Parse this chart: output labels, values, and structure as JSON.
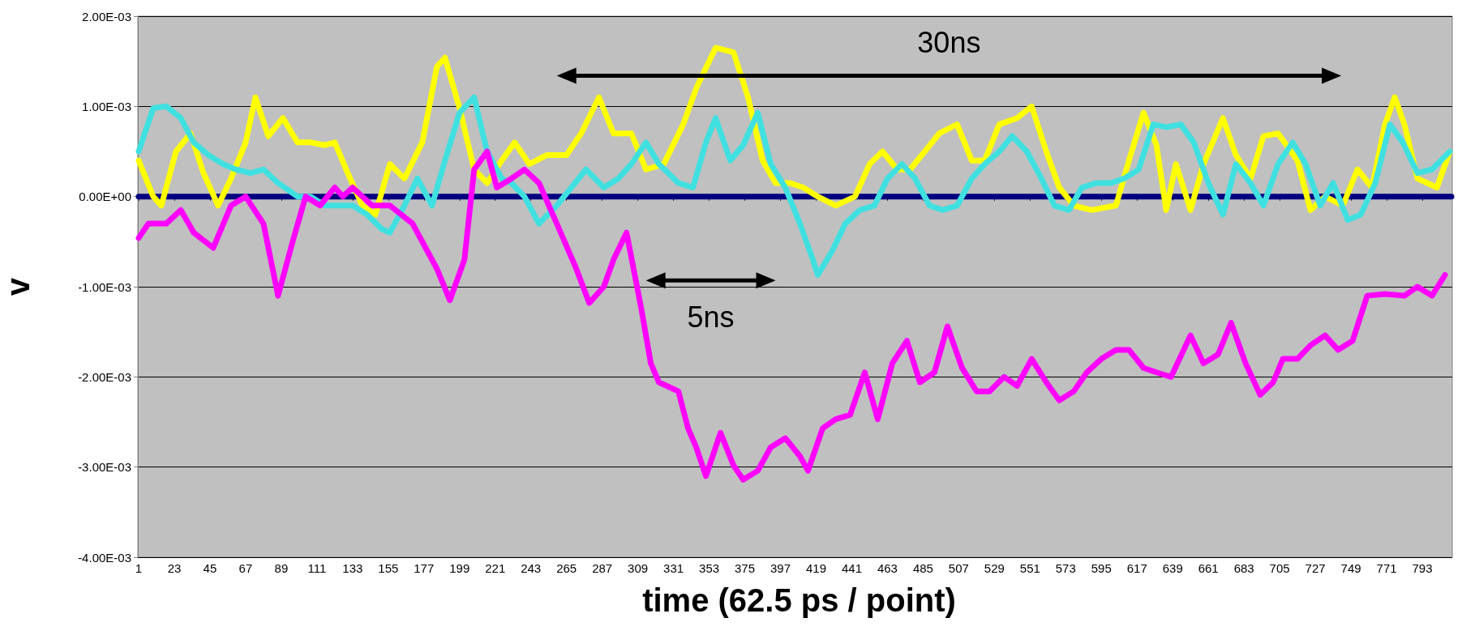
{
  "chart_data": {
    "type": "line",
    "ylabel": "v",
    "xlabel": "time (62.5 ps / point)",
    "xlim": [
      0.5,
      811.5
    ],
    "xticks": [
      1,
      23,
      45,
      67,
      89,
      111,
      133,
      155,
      177,
      199,
      221,
      243,
      265,
      287,
      309,
      331,
      353,
      375,
      397,
      419,
      441,
      463,
      485,
      507,
      529,
      551,
      573,
      595,
      617,
      639,
      661,
      683,
      705,
      727,
      749,
      771,
      793
    ],
    "ylim": [
      -0.004,
      0.002
    ],
    "yticks": [
      {
        "value": -0.004,
        "label": "-4.00E-03"
      },
      {
        "value": -0.003,
        "label": "-3.00E-03"
      },
      {
        "value": -0.002,
        "label": "-2.00E-03"
      },
      {
        "value": -0.001,
        "label": "-1.00E-03"
      },
      {
        "value": 0,
        "label": "0.00E+00"
      },
      {
        "value": 0.001,
        "label": "1.00E-03"
      },
      {
        "value": 0.002,
        "label": "2.00E-03"
      }
    ],
    "grid": "y",
    "marker": "none",
    "line_style": "solid",
    "annotations": [
      "30ns",
      "5ns"
    ],
    "series": [
      {
        "color": "#000080",
        "x": [
          1,
          811
        ],
        "values": [
          0,
          0
        ]
      },
      {
        "color": "#ffff00",
        "x": [
          1,
          10,
          15,
          24,
          33,
          41,
          50,
          58,
          67,
          73,
          81,
          90,
          99,
          107,
          116,
          122,
          130,
          139,
          147,
          156,
          165,
          176,
          185,
          190,
          199,
          208,
          216,
          225,
          233,
          242,
          253,
          265,
          274,
          285,
          294,
          305,
          314,
          325,
          337,
          345,
          357,
          368,
          377,
          386,
          394,
          403,
          411,
          420,
          431,
          443,
          452,
          460,
          469,
          477,
          486,
          495,
          506,
          515,
          523,
          532,
          543,
          552,
          561,
          569,
          578,
          589,
          604,
          612,
          621,
          629,
          635,
          641,
          650,
          658,
          670,
          678,
          687,
          695,
          704,
          716,
          724,
          733,
          744,
          753,
          762,
          770,
          776,
          782,
          790,
          802,
          810
        ],
        "values": [
          0.0004,
          0,
          -0.0001,
          0.0005,
          0.0007,
          0.00026,
          -0.0001,
          0.0002,
          0.0006,
          0.0011,
          0.00067,
          0.00087,
          0.0006,
          0.0006,
          0.00057,
          0.0006,
          0.00026,
          -0.0001,
          -0.0002,
          0.00036,
          0.0002,
          0.0006,
          0.00144,
          0.00154,
          0.00098,
          0.0003,
          0.00015,
          0.0004,
          0.0006,
          0.00036,
          0.00046,
          0.00046,
          0.0007,
          0.0011,
          0.0007,
          0.0007,
          0.0003,
          0.00036,
          0.0008,
          0.0012,
          0.00165,
          0.0016,
          0.0011,
          0.0004,
          0.00015,
          0.00015,
          0.0001,
          0,
          -0.0001,
          0,
          0.00036,
          0.0005,
          0.0003,
          0.0003,
          0.0005,
          0.0007,
          0.0008,
          0.0004,
          0.0004,
          0.0008,
          0.00087,
          0.001,
          0.0005,
          0.0001,
          -0.0001,
          -0.00015,
          -0.0001,
          0.0004,
          0.00093,
          0.00057,
          -0.00015,
          0.00036,
          -0.00015,
          0.00036,
          0.00087,
          0.00046,
          0.0002,
          0.00067,
          0.0007,
          0.0004,
          -0.00015,
          0,
          -0.0001,
          0.0003,
          0.0001,
          0.0008,
          0.0011,
          0.0008,
          0.0002,
          0.0001,
          0.0005
        ]
      },
      {
        "color": "#40e0e0",
        "x": [
          1,
          10,
          18,
          27,
          35,
          44,
          53,
          61,
          70,
          78,
          87,
          99,
          107,
          116,
          125,
          133,
          142,
          151,
          156,
          165,
          173,
          182,
          190,
          199,
          208,
          216,
          225,
          231,
          239,
          248,
          259,
          268,
          277,
          288,
          297,
          305,
          314,
          322,
          334,
          343,
          351,
          357,
          366,
          374,
          383,
          391,
          400,
          409,
          417,
          420,
          429,
          437,
          446,
          455,
          463,
          472,
          480,
          489,
          497,
          506,
          515,
          523,
          532,
          540,
          549,
          558,
          566,
          575,
          583,
          592,
          601,
          609,
          618,
          627,
          635,
          644,
          652,
          661,
          670,
          678,
          687,
          695,
          704,
          713,
          721,
          730,
          738,
          747,
          755,
          764,
          773,
          781,
          790,
          799,
          810
        ],
        "values": [
          0.0005,
          0.00098,
          0.001,
          0.00087,
          0.0006,
          0.00046,
          0.00036,
          0.0003,
          0.00026,
          0.0003,
          0.00015,
          0,
          0,
          -0.0001,
          -0.0001,
          -0.0001,
          -0.0002,
          -0.00036,
          -0.0004,
          -0.0001,
          0.0002,
          -0.0001,
          0.0004,
          0.00093,
          0.0011,
          0.0005,
          0.0002,
          0.00015,
          0,
          -0.0003,
          -0.0001,
          0.0001,
          0.0003,
          0.0001,
          0.0002,
          0.00036,
          0.0006,
          0.00036,
          0.00015,
          0.0001,
          0.0006,
          0.00087,
          0.0004,
          0.00057,
          0.00093,
          0.00036,
          0.0001,
          -0.0003,
          -0.0007,
          -0.00087,
          -0.0006,
          -0.0003,
          -0.00015,
          -0.0001,
          0.0002,
          0.00036,
          0.0002,
          -0.0001,
          -0.00015,
          -0.0001,
          0.0002,
          0.00036,
          0.0005,
          0.00067,
          0.0005,
          0.0002,
          -0.0001,
          -0.00015,
          0.0001,
          0.00015,
          0.00015,
          0.0002,
          0.0003,
          0.0008,
          0.00077,
          0.0008,
          0.0006,
          0.00015,
          -0.0002,
          0.00036,
          0.00015,
          -0.0001,
          0.00036,
          0.0006,
          0.00036,
          -0.0001,
          0.00015,
          -0.00026,
          -0.0002,
          0.00015,
          0.0008,
          0.0006,
          0.00026,
          0.0003,
          0.0005
        ]
      },
      {
        "color": "#ff00ff",
        "x": [
          1,
          7,
          18,
          27,
          35,
          47,
          58,
          67,
          78,
          87,
          96,
          104,
          113,
          122,
          127,
          133,
          145,
          156,
          170,
          185,
          193,
          202,
          208,
          216,
          222,
          231,
          239,
          248,
          259,
          271,
          279,
          288,
          294,
          302,
          311,
          317,
          322,
          334,
          340,
          345,
          351,
          360,
          368,
          374,
          383,
          391,
          400,
          409,
          414,
          423,
          431,
          440,
          449,
          457,
          466,
          475,
          483,
          492,
          500,
          509,
          518,
          526,
          535,
          543,
          552,
          561,
          569,
          578,
          586,
          595,
          604,
          612,
          621,
          629,
          638,
          650,
          658,
          667,
          675,
          684,
          693,
          701,
          707,
          716,
          724,
          733,
          741,
          750,
          759,
          770,
          782,
          790,
          799,
          807
        ],
        "values": [
          -0.00046,
          -0.0003,
          -0.0003,
          -0.00015,
          -0.0004,
          -0.00057,
          -0.0001,
          0,
          -0.0003,
          -0.0011,
          -0.0005,
          0,
          -0.0001,
          0.0001,
          0,
          0.0001,
          -0.0001,
          -0.0001,
          -0.0003,
          -0.0008,
          -0.00115,
          -0.0007,
          0.0003,
          0.0005,
          0.0001,
          0.0002,
          0.0003,
          0.00015,
          -0.0003,
          -0.0008,
          -0.00118,
          -0.001,
          -0.0007,
          -0.0004,
          -0.00123,
          -0.00185,
          -0.00206,
          -0.00216,
          -0.00257,
          -0.00278,
          -0.0031,
          -0.00262,
          -0.00298,
          -0.00314,
          -0.00304,
          -0.00278,
          -0.00268,
          -0.00288,
          -0.00304,
          -0.00257,
          -0.00247,
          -0.00242,
          -0.00195,
          -0.00247,
          -0.00185,
          -0.0016,
          -0.00206,
          -0.00195,
          -0.00144,
          -0.0019,
          -0.00216,
          -0.00216,
          -0.002,
          -0.0021,
          -0.0018,
          -0.00206,
          -0.00226,
          -0.00216,
          -0.00195,
          -0.0018,
          -0.0017,
          -0.0017,
          -0.0019,
          -0.00195,
          -0.002,
          -0.00154,
          -0.00185,
          -0.00175,
          -0.0014,
          -0.00185,
          -0.0022,
          -0.00206,
          -0.0018,
          -0.0018,
          -0.00165,
          -0.00154,
          -0.0017,
          -0.0016,
          -0.0011,
          -0.00108,
          -0.0011,
          -0.001,
          -0.0011,
          -0.00087
        ]
      }
    ]
  }
}
